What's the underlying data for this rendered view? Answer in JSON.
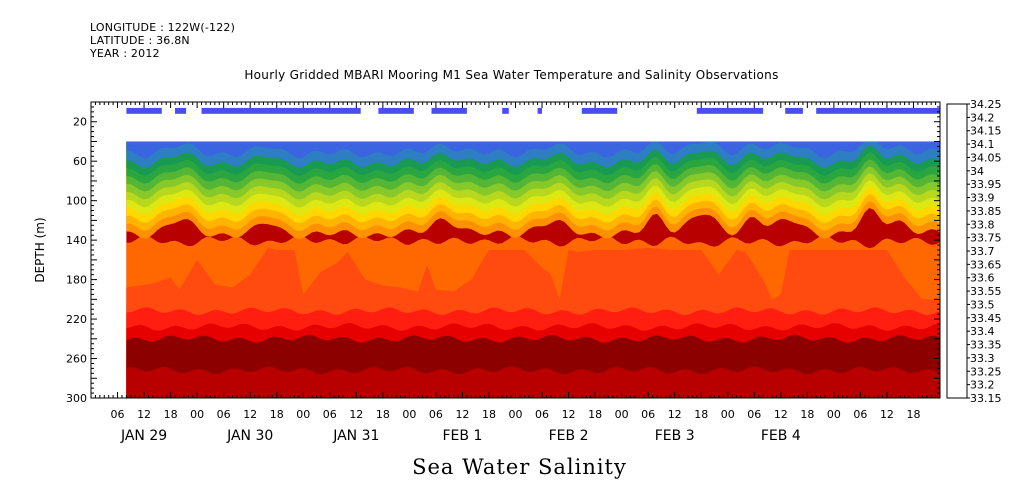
{
  "header": {
    "longitude": "LONGITUDE : 122W(-122)",
    "latitude": "LATITUDE : 36.8N",
    "year": "YEAR : 2012"
  },
  "chart_data": {
    "type": "heatmap",
    "title": "Hourly Gridded MBARI Mooring M1 Sea Water Temperature and Salinity Observations",
    "xlabel": "Sea Water Salinity",
    "ylabel": "DEPTH (m)",
    "ylim": [
      300,
      0
    ],
    "y_ticks": [
      20,
      60,
      100,
      140,
      180,
      220,
      260,
      300
    ],
    "x_range_hours": [
      0,
      192
    ],
    "x_hour_ticks": [
      {
        "h": 6,
        "label": "06"
      },
      {
        "h": 12,
        "label": "12"
      },
      {
        "h": 18,
        "label": "18"
      },
      {
        "h": 24,
        "label": "00"
      },
      {
        "h": 30,
        "label": "06"
      },
      {
        "h": 36,
        "label": "12"
      },
      {
        "h": 42,
        "label": "18"
      },
      {
        "h": 48,
        "label": "00"
      },
      {
        "h": 54,
        "label": "06"
      },
      {
        "h": 60,
        "label": "12"
      },
      {
        "h": 66,
        "label": "18"
      },
      {
        "h": 72,
        "label": "00"
      },
      {
        "h": 78,
        "label": "06"
      },
      {
        "h": 84,
        "label": "12"
      },
      {
        "h": 90,
        "label": "18"
      },
      {
        "h": 96,
        "label": "00"
      },
      {
        "h": 102,
        "label": "06"
      },
      {
        "h": 108,
        "label": "12"
      },
      {
        "h": 114,
        "label": "18"
      },
      {
        "h": 120,
        "label": "00"
      },
      {
        "h": 126,
        "label": "06"
      },
      {
        "h": 132,
        "label": "12"
      },
      {
        "h": 138,
        "label": "18"
      },
      {
        "h": 144,
        "label": "00"
      },
      {
        "h": 150,
        "label": "06"
      },
      {
        "h": 156,
        "label": "12"
      },
      {
        "h": 162,
        "label": "18"
      },
      {
        "h": 168,
        "label": "00"
      },
      {
        "h": 174,
        "label": "06"
      },
      {
        "h": 180,
        "label": "12"
      },
      {
        "h": 186,
        "label": "18"
      }
    ],
    "x_day_labels": [
      {
        "h": 12,
        "label": "JAN 29"
      },
      {
        "h": 36,
        "label": "JAN 30"
      },
      {
        "h": 60,
        "label": "JAN 31"
      },
      {
        "h": 84,
        "label": "FEB  1"
      },
      {
        "h": 108,
        "label": "FEB  2"
      },
      {
        "h": 132,
        "label": "FEB  3"
      },
      {
        "h": 156,
        "label": "FEB  4"
      }
    ],
    "data_start_hour": 8,
    "data_end_hour": 192,
    "colorbar": {
      "levels": [
        "33.15",
        "33.2",
        "33.25",
        "33.3",
        "33.35",
        "33.4",
        "33.45",
        "33.5",
        "33.55",
        "33.6",
        "33.65",
        "33.7",
        "33.75",
        "33.8",
        "33.85",
        "33.9",
        "33.95",
        "34",
        "34.05",
        "34.1",
        "34.15",
        "34.2",
        "34.25"
      ],
      "colors": [
        "#cc00ee",
        "#9933ff",
        "#6a3df0",
        "#4a4df0",
        "#3b64e0",
        "#2e7ec4",
        "#1e8f8a",
        "#189a52",
        "#2aa640",
        "#55b534",
        "#88c92a",
        "#b8d81e",
        "#dde812",
        "#fff200",
        "#ffd800",
        "#ffb400",
        "#ff9000",
        "#ff6800",
        "#ff4a10",
        "#ff1e10",
        "#e60000",
        "#b80000",
        "#8c0000"
      ]
    },
    "surface_bars": [
      [
        8,
        16
      ],
      [
        19,
        21.5
      ],
      [
        25,
        61
      ],
      [
        65,
        73
      ],
      [
        77,
        85
      ],
      [
        93,
        94.5
      ],
      [
        101,
        102
      ],
      [
        111,
        119
      ],
      [
        137,
        152
      ],
      [
        157,
        161
      ],
      [
        164,
        192
      ]
    ],
    "upper_contours": {
      "depths": [
        40,
        52,
        62,
        70,
        78,
        86,
        94,
        102,
        110,
        118,
        126,
        134
      ],
      "level_index_from": 3,
      "base_offsets": [
        0,
        4,
        10,
        16,
        22,
        28,
        34,
        40,
        46,
        52,
        58,
        64
      ],
      "bumps": [
        [
          20,
          12,
          4
        ],
        [
          40,
          10,
          3
        ],
        [
          80,
          14,
          4
        ],
        [
          104,
          10,
          5
        ],
        [
          128,
          16,
          3
        ],
        [
          138,
          18,
          4
        ],
        [
          150,
          16,
          3
        ],
        [
          158,
          12,
          4
        ],
        [
          176,
          18,
          3
        ],
        [
          182,
          12,
          4
        ]
      ]
    },
    "mid_front_depth": [
      [
        8,
        188
      ],
      [
        14,
        184
      ],
      [
        18,
        178
      ],
      [
        20,
        190
      ],
      [
        24,
        160
      ],
      [
        28,
        185
      ],
      [
        32,
        188
      ],
      [
        36,
        175
      ],
      [
        40,
        148
      ],
      [
        42,
        150
      ],
      [
        46,
        150
      ],
      [
        48,
        195
      ],
      [
        52,
        172
      ],
      [
        56,
        162
      ],
      [
        58,
        152
      ],
      [
        62,
        180
      ],
      [
        66,
        186
      ],
      [
        70,
        188
      ],
      [
        74,
        192
      ],
      [
        76,
        165
      ],
      [
        78,
        190
      ],
      [
        82,
        192
      ],
      [
        86,
        180
      ],
      [
        90,
        150
      ],
      [
        94,
        150
      ],
      [
        98,
        150
      ],
      [
        102,
        168
      ],
      [
        104,
        175
      ],
      [
        106,
        200
      ],
      [
        108,
        150
      ],
      [
        110,
        152
      ],
      [
        114,
        150
      ],
      [
        120,
        150
      ],
      [
        126,
        148
      ],
      [
        132,
        150
      ],
      [
        138,
        150
      ],
      [
        142,
        175
      ],
      [
        146,
        150
      ],
      [
        148,
        152
      ],
      [
        152,
        180
      ],
      [
        154,
        200
      ],
      [
        156,
        195
      ],
      [
        158,
        150
      ],
      [
        162,
        150
      ],
      [
        168,
        150
      ],
      [
        172,
        150
      ],
      [
        176,
        150
      ],
      [
        180,
        150
      ],
      [
        184,
        178
      ],
      [
        188,
        200
      ],
      [
        192,
        200
      ]
    ],
    "lower_bands": [
      {
        "depth": 205,
        "level_index": 18
      },
      {
        "depth": 212,
        "level_index": 19
      },
      {
        "depth": 228,
        "level_index": 20
      },
      {
        "depth": 240,
        "level_index": 22
      },
      {
        "depth": 272,
        "level_index": 21
      }
    ]
  }
}
